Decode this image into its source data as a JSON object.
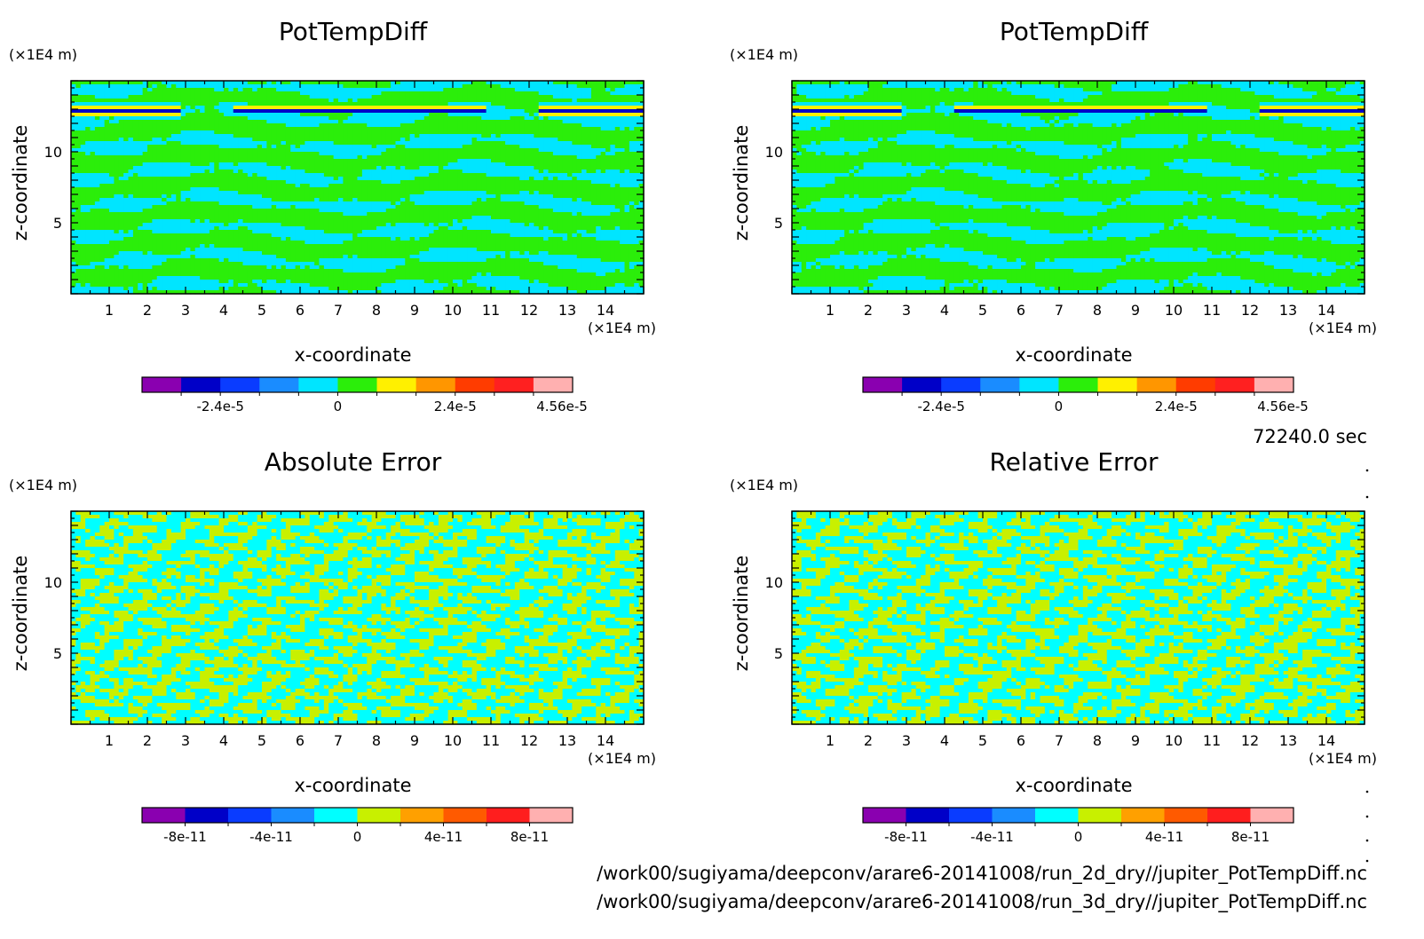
{
  "chart_data": [
    {
      "type": "heatmap",
      "title": "PotTempDiff",
      "xlabel": "x-coordinate",
      "ylabel": "z-coordinate",
      "x_unit": "(×1E4 m)",
      "y_unit": "(×1E4 m)",
      "x_ticks": [
        "1",
        "2",
        "3",
        "4",
        "5",
        "6",
        "7",
        "8",
        "9",
        "10",
        "11",
        "12",
        "13",
        "14"
      ],
      "y_ticks": [
        "5",
        "10"
      ],
      "xlim": [
        0,
        15
      ],
      "ylim": [
        0,
        15
      ],
      "colorbar": {
        "colors": [
          "#8a00b0",
          "#0000c8",
          "#0a3cff",
          "#1a8cff",
          "#00e5ff",
          "#2bee0a",
          "#fff000",
          "#ff9600",
          "#ff3c00",
          "#ff2020",
          "#ffb0b0"
        ],
        "labels": [
          "-2.4e-5",
          "0",
          "2.4e-5",
          "4.56e-5"
        ]
      }
    },
    {
      "type": "heatmap",
      "title": "PotTempDiff",
      "xlabel": "x-coordinate",
      "ylabel": "z-coordinate",
      "x_unit": "(×1E4 m)",
      "y_unit": "(×1E4 m)",
      "x_ticks": [
        "1",
        "2",
        "3",
        "4",
        "5",
        "6",
        "7",
        "8",
        "9",
        "10",
        "11",
        "12",
        "13",
        "14"
      ],
      "y_ticks": [
        "5",
        "10"
      ],
      "xlim": [
        0,
        15
      ],
      "ylim": [
        0,
        15
      ],
      "colorbar": {
        "colors": [
          "#8a00b0",
          "#0000c8",
          "#0a3cff",
          "#1a8cff",
          "#00e5ff",
          "#2bee0a",
          "#fff000",
          "#ff9600",
          "#ff3c00",
          "#ff2020",
          "#ffb0b0"
        ],
        "labels": [
          "-2.4e-5",
          "0",
          "2.4e-5",
          "4.56e-5"
        ]
      }
    },
    {
      "type": "heatmap",
      "title": "Absolute Error",
      "xlabel": "x-coordinate",
      "ylabel": "z-coordinate",
      "x_unit": "(×1E4 m)",
      "y_unit": "(×1E4 m)",
      "x_ticks": [
        "1",
        "2",
        "3",
        "4",
        "5",
        "6",
        "7",
        "8",
        "9",
        "10",
        "11",
        "12",
        "13",
        "14"
      ],
      "y_ticks": [
        "5",
        "10"
      ],
      "xlim": [
        0,
        15
      ],
      "ylim": [
        0,
        15
      ],
      "colorbar": {
        "colors": [
          "#8a00b0",
          "#0000c8",
          "#0a3cff",
          "#1a8cff",
          "#00ffff",
          "#c8f000",
          "#ffa000",
          "#ff5a00",
          "#ff1e1e",
          "#ffb0b0"
        ],
        "labels": [
          "-8e-11",
          "-4e-11",
          "0",
          "4e-11",
          "8e-11"
        ]
      }
    },
    {
      "type": "heatmap",
      "title": "Relative Error",
      "xlabel": "x-coordinate",
      "ylabel": "z-coordinate",
      "x_unit": "(×1E4 m)",
      "y_unit": "(×1E4 m)",
      "x_ticks": [
        "1",
        "2",
        "3",
        "4",
        "5",
        "6",
        "7",
        "8",
        "9",
        "10",
        "11",
        "12",
        "13",
        "14"
      ],
      "y_ticks": [
        "5",
        "10"
      ],
      "xlim": [
        0,
        15
      ],
      "ylim": [
        0,
        15
      ],
      "colorbar": {
        "colors": [
          "#8a00b0",
          "#0000c8",
          "#0a3cff",
          "#1a8cff",
          "#00ffff",
          "#c8f000",
          "#ffa000",
          "#ff5a00",
          "#ff1e1e",
          "#ffb0b0"
        ],
        "labels": [
          "-8e-11",
          "-4e-11",
          "0",
          "4e-11",
          "8e-11"
        ]
      }
    }
  ],
  "time_label": "72240.0 sec",
  "files": [
    "/work00/sugiyama/deepconv/arare6-20141008/run_2d_dry//jupiter_PotTempDiff.nc",
    "/work00/sugiyama/deepconv/arare6-20141008/run_3d_dry//jupiter_PotTempDiff.nc"
  ]
}
